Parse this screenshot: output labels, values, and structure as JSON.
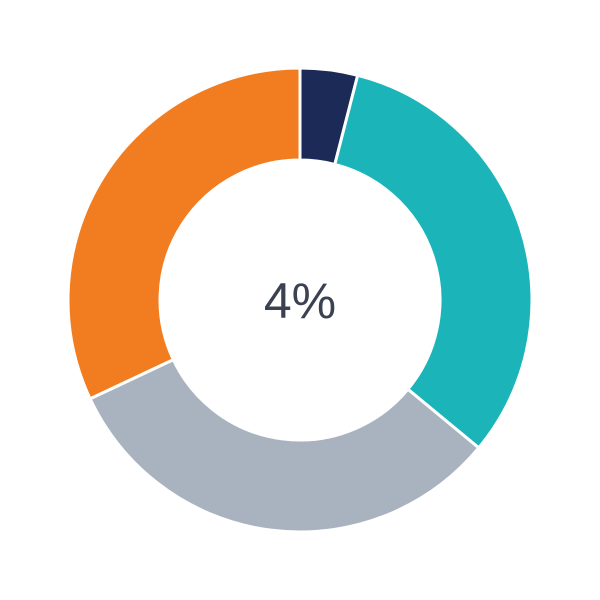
{
  "chart_data": {
    "type": "pie",
    "variant": "donut",
    "center_label": "4%",
    "slices": [
      {
        "value": 4,
        "color": "#1b2a56"
      },
      {
        "value": 32,
        "color": "#1bb5b9"
      },
      {
        "value": 32,
        "color": "#a9b3c0"
      },
      {
        "value": 32,
        "color": "#f27d21"
      }
    ],
    "start_angle": "top",
    "direction": "clockwise"
  }
}
